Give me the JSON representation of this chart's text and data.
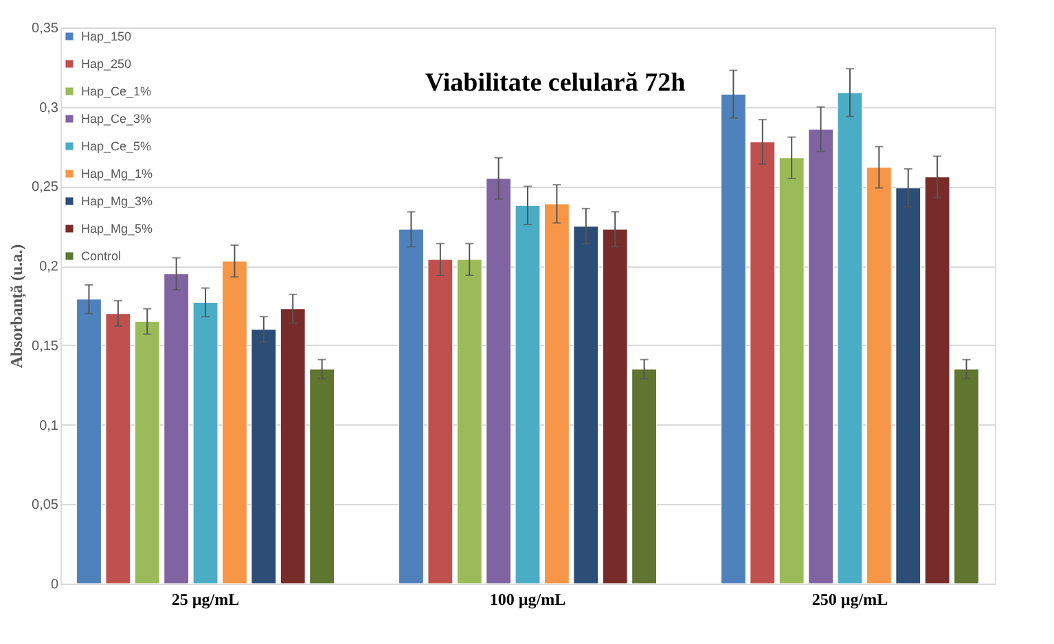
{
  "chart_data": {
    "type": "bar",
    "title": "Viabilitate celulară 72h",
    "ylabel": "Absorbanță (u.a.)",
    "categories": [
      "25 µg/mL",
      "100 µg/mL",
      "250 µg/mL"
    ],
    "series": [
      {
        "name": "Hap_150",
        "color": "#4f81bd",
        "values": [
          0.179,
          0.223,
          0.308
        ],
        "errors": [
          0.009,
          0.011,
          0.015
        ]
      },
      {
        "name": "Hap_250",
        "color": "#c0504d",
        "values": [
          0.17,
          0.204,
          0.278
        ],
        "errors": [
          0.008,
          0.01,
          0.014
        ]
      },
      {
        "name": "Hap_Ce_1%",
        "color": "#9bbb59",
        "values": [
          0.165,
          0.204,
          0.268
        ],
        "errors": [
          0.008,
          0.01,
          0.013
        ]
      },
      {
        "name": "Hap_Ce_3%",
        "color": "#8064a2",
        "values": [
          0.195,
          0.255,
          0.286
        ],
        "errors": [
          0.01,
          0.013,
          0.014
        ]
      },
      {
        "name": "Hap_Ce_5%",
        "color": "#4bacc6",
        "values": [
          0.177,
          0.238,
          0.309
        ],
        "errors": [
          0.009,
          0.012,
          0.015
        ]
      },
      {
        "name": "Hap_Mg_1%",
        "color": "#f79646",
        "values": [
          0.203,
          0.239,
          0.262
        ],
        "errors": [
          0.01,
          0.012,
          0.013
        ]
      },
      {
        "name": "Hap_Mg_3%",
        "color": "#2c4d75",
        "values": [
          0.16,
          0.225,
          0.249
        ],
        "errors": [
          0.008,
          0.011,
          0.012
        ]
      },
      {
        "name": "Hap_Mg_5%",
        "color": "#772c2a",
        "values": [
          0.173,
          0.223,
          0.256
        ],
        "errors": [
          0.009,
          0.011,
          0.013
        ]
      },
      {
        "name": "Control",
        "color": "#5f7530",
        "values": [
          0.135,
          0.135,
          0.135
        ],
        "errors": [
          0.006,
          0.006,
          0.006
        ]
      }
    ],
    "ylim": [
      0,
      0.35
    ],
    "yticks": [
      0,
      {
        "value": 0.05,
        "label": "0,05"
      },
      {
        "value": 0.1,
        "label": "0,1"
      },
      {
        "value": 0.15,
        "label": "0,15"
      },
      {
        "value": 0.2,
        "label": "0,2"
      },
      {
        "value": 0.25,
        "label": "0,25"
      },
      {
        "value": 0.3,
        "label": "0,3"
      },
      {
        "value": 0.35,
        "label": "0,35"
      }
    ],
    "grid": "y",
    "legend": "top left"
  }
}
